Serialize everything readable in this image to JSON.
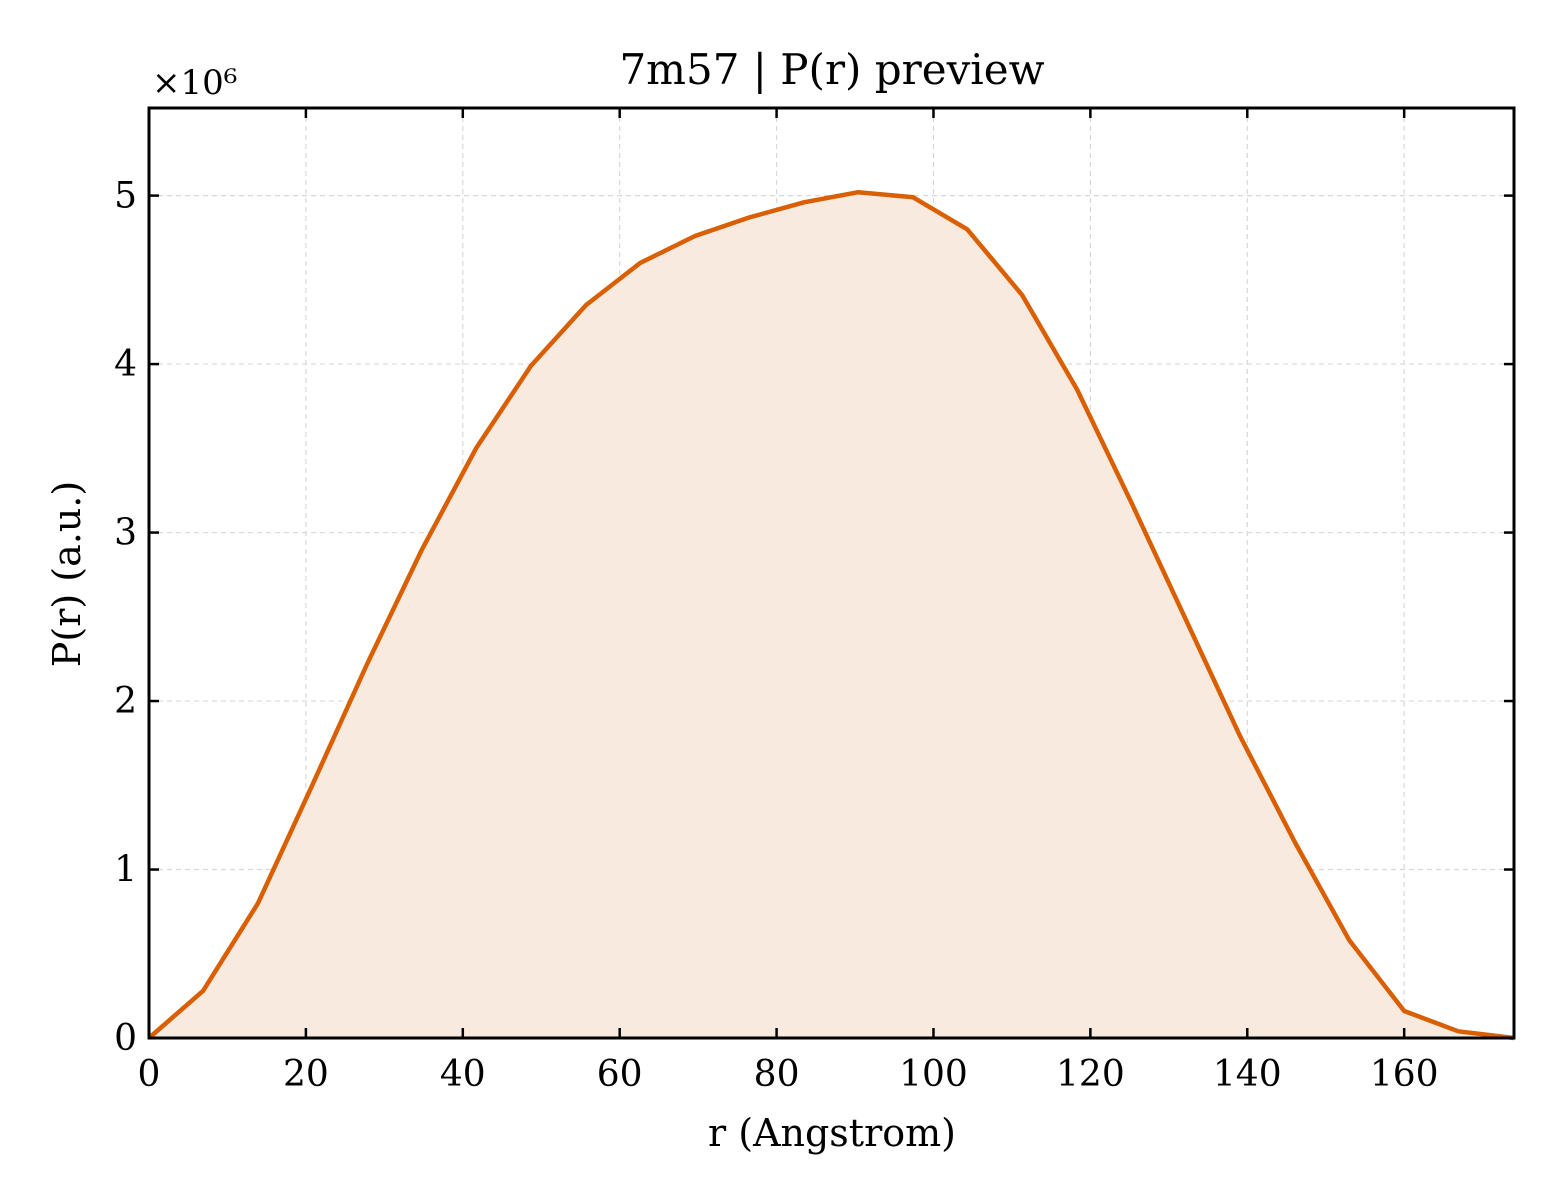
{
  "chart_data": {
    "type": "area",
    "title": "7m57 | P(r) preview",
    "xlabel": "r (Angstrom)",
    "ylabel": "P(r) (a.u.)",
    "y_multiplier_label": "×10⁶",
    "y_scale": 1000000,
    "xlim": [
      0,
      174
    ],
    "ylim": [
      0,
      5.52
    ],
    "x_ticks": [
      0,
      20,
      40,
      60,
      80,
      100,
      120,
      140,
      160
    ],
    "x_tick_labels": [
      "0",
      "20",
      "40",
      "60",
      "80",
      "100",
      "120",
      "140",
      "160"
    ],
    "y_ticks": [
      0,
      1,
      2,
      3,
      4,
      5
    ],
    "y_tick_labels": [
      "0",
      "1",
      "2",
      "3",
      "4",
      "5"
    ],
    "grid": true,
    "colors": {
      "line": "#d95f02",
      "fill": "#f9eae0",
      "grid": "#d8d8d8",
      "axis": "#000000"
    },
    "series": [
      {
        "x": [
          0,
          6.9,
          13.9,
          20.8,
          27.8,
          34.8,
          41.7,
          48.7,
          55.7,
          62.6,
          69.6,
          76.5,
          83.5,
          90.4,
          97.4,
          104.3,
          111.3,
          118.3,
          125.2,
          132.2,
          139.1,
          146.1,
          153.0,
          160.0,
          166.9,
          174.0
        ],
        "y": [
          0,
          0.28,
          0.8,
          1.5,
          2.22,
          2.9,
          3.5,
          3.99,
          4.35,
          4.6,
          4.76,
          4.87,
          4.96,
          5.02,
          4.99,
          4.8,
          4.41,
          3.85,
          3.18,
          2.48,
          1.79,
          1.16,
          0.58,
          0.16,
          0.04,
          0.0
        ]
      }
    ]
  }
}
